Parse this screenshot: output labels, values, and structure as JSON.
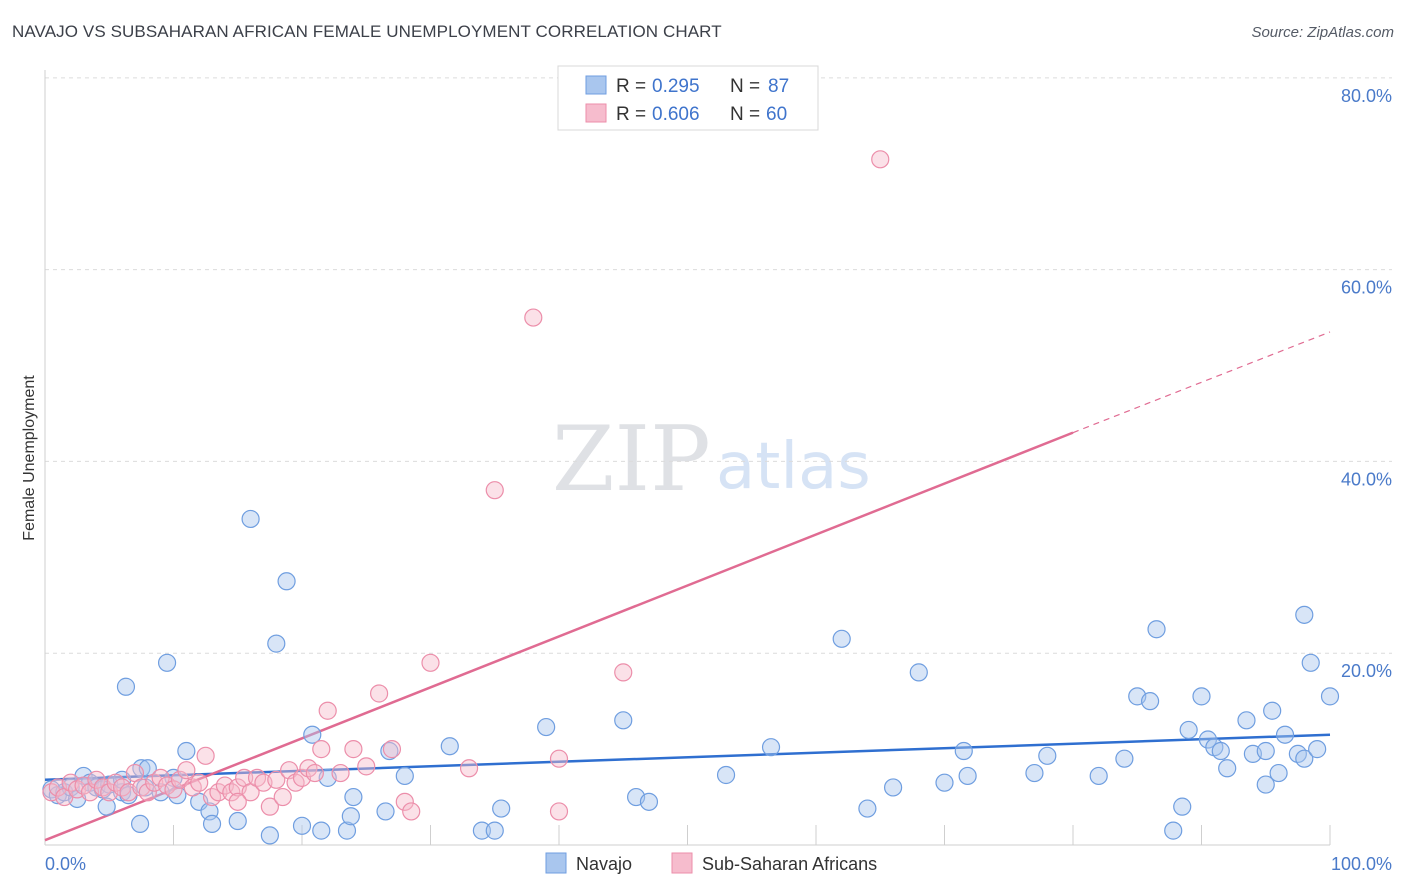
{
  "title": "NAVAJO VS SUBSAHARAN AFRICAN FEMALE UNEMPLOYMENT CORRELATION CHART",
  "source": "Source: ZipAtlas.com",
  "watermark": {
    "zip": "ZIP",
    "atlas": "atlas"
  },
  "colors": {
    "navajo_fill": "#a9c6ee",
    "navajo_stroke": "#6f9ee0",
    "navajo_line": "#2f6fd0",
    "sub_fill": "#f6bccd",
    "sub_stroke": "#ec8eaa",
    "sub_line": "#e06b92",
    "tick_text": "#4a7ac9",
    "grid": "#dcdcdc"
  },
  "legend": {
    "rows": [
      {
        "r_label": "R =",
        "r_value": "0.295",
        "n_label": "N =",
        "n_value": "87"
      },
      {
        "r_label": "R =",
        "r_value": "0.606",
        "n_label": "N =",
        "n_value": "60"
      }
    ]
  },
  "bottom_legend": {
    "navajo": "Navajo",
    "sub": "Sub-Saharan Africans"
  },
  "chart_data": {
    "type": "scatter",
    "title": "NAVAJO VS SUBSAHARAN AFRICAN FEMALE UNEMPLOYMENT CORRELATION CHART",
    "xlabel": "",
    "ylabel": "Female Unemployment",
    "x_ticks": [
      "0.0%",
      "100.0%"
    ],
    "y_ticks": [
      "20.0%",
      "40.0%",
      "60.0%",
      "80.0%"
    ],
    "xlim": [
      0,
      100
    ],
    "ylim": [
      0,
      82
    ],
    "grid": true,
    "legend_position": "top-center",
    "series": [
      {
        "name": "Navajo",
        "r": 0.295,
        "n": 87,
        "trend": {
          "x": [
            0,
            100
          ],
          "y": [
            6.8,
            11.5
          ],
          "style": "solid"
        },
        "points": [
          [
            0.5,
            5.8
          ],
          [
            1,
            5.2
          ],
          [
            1.5,
            5.5
          ],
          [
            2,
            6.0
          ],
          [
            2.5,
            4.8
          ],
          [
            3,
            7.2
          ],
          [
            3.5,
            6.5
          ],
          [
            4,
            6.0
          ],
          [
            4.5,
            5.8
          ],
          [
            5,
            6.3
          ],
          [
            4.8,
            4.0
          ],
          [
            6,
            5.5
          ],
          [
            6,
            6.8
          ],
          [
            6.5,
            5.2
          ],
          [
            6.3,
            16.5
          ],
          [
            7.5,
            8.0
          ],
          [
            7.4,
            2.2
          ],
          [
            7.8,
            6.0
          ],
          [
            8,
            8.0
          ],
          [
            9,
            5.5
          ],
          [
            9.5,
            19.0
          ],
          [
            10,
            7.0
          ],
          [
            10.3,
            5.2
          ],
          [
            11,
            9.8
          ],
          [
            12,
            4.5
          ],
          [
            12.8,
            3.5
          ],
          [
            13,
            2.2
          ],
          [
            15,
            2.5
          ],
          [
            16,
            34.0
          ],
          [
            17.5,
            1.0
          ],
          [
            18,
            21.0
          ],
          [
            18.8,
            27.5
          ],
          [
            20,
            2.0
          ],
          [
            20.8,
            11.5
          ],
          [
            21.5,
            1.5
          ],
          [
            22,
            7.0
          ],
          [
            23.5,
            1.5
          ],
          [
            23.8,
            3.0
          ],
          [
            24,
            5.0
          ],
          [
            26.5,
            3.5
          ],
          [
            26.8,
            9.8
          ],
          [
            28,
            7.2
          ],
          [
            31.5,
            10.3
          ],
          [
            34,
            1.5
          ],
          [
            35,
            1.5
          ],
          [
            35.5,
            3.8
          ],
          [
            39,
            12.3
          ],
          [
            45,
            13.0
          ],
          [
            46,
            5.0
          ],
          [
            47,
            4.5
          ],
          [
            53,
            7.3
          ],
          [
            56.5,
            10.2
          ],
          [
            62,
            21.5
          ],
          [
            64,
            3.8
          ],
          [
            66,
            6.0
          ],
          [
            68,
            18.0
          ],
          [
            70,
            6.5
          ],
          [
            71.5,
            9.8
          ],
          [
            71.8,
            7.2
          ],
          [
            77,
            7.5
          ],
          [
            78,
            9.3
          ],
          [
            82,
            7.2
          ],
          [
            84,
            9.0
          ],
          [
            85,
            15.5
          ],
          [
            86,
            15.0
          ],
          [
            86.5,
            22.5
          ],
          [
            87.8,
            1.5
          ],
          [
            88.5,
            4.0
          ],
          [
            89,
            12.0
          ],
          [
            90,
            15.5
          ],
          [
            90.5,
            11.0
          ],
          [
            91,
            10.2
          ],
          [
            91.5,
            9.8
          ],
          [
            92,
            8.0
          ],
          [
            93.5,
            13.0
          ],
          [
            94,
            9.5
          ],
          [
            95,
            6.3
          ],
          [
            95,
            9.8
          ],
          [
            95.5,
            14.0
          ],
          [
            96,
            7.5
          ],
          [
            96.5,
            11.5
          ],
          [
            97.5,
            9.5
          ],
          [
            98,
            9.0
          ],
          [
            98,
            24.0
          ],
          [
            98.5,
            19.0
          ],
          [
            99,
            10.0
          ],
          [
            100,
            15.5
          ]
        ]
      },
      {
        "name": "Sub-Saharan Africans",
        "r": 0.606,
        "n": 60,
        "trend": {
          "x": [
            0,
            80
          ],
          "y": [
            0.5,
            43.0
          ],
          "style": "solid",
          "dashed_extension": {
            "x": [
              80,
              100
            ],
            "y": [
              43.0,
              53.5
            ]
          }
        },
        "points": [
          [
            0.5,
            5.5
          ],
          [
            1,
            6.0
          ],
          [
            1.5,
            5.0
          ],
          [
            2,
            6.5
          ],
          [
            2.5,
            5.8
          ],
          [
            3,
            6.2
          ],
          [
            3.5,
            5.5
          ],
          [
            4,
            6.8
          ],
          [
            4.5,
            6.0
          ],
          [
            5,
            5.5
          ],
          [
            5.5,
            6.5
          ],
          [
            6,
            6.0
          ],
          [
            6.5,
            5.5
          ],
          [
            7,
            7.5
          ],
          [
            7.5,
            6.0
          ],
          [
            8,
            5.5
          ],
          [
            8.5,
            6.5
          ],
          [
            9,
            7.0
          ],
          [
            9.5,
            6.2
          ],
          [
            10,
            5.8
          ],
          [
            10.5,
            6.8
          ],
          [
            11,
            7.8
          ],
          [
            11.5,
            6.0
          ],
          [
            12,
            6.5
          ],
          [
            12.5,
            9.3
          ],
          [
            13,
            5.0
          ],
          [
            13.5,
            5.5
          ],
          [
            14,
            6.2
          ],
          [
            14.5,
            5.5
          ],
          [
            15,
            6.0
          ],
          [
            15.5,
            7.0
          ],
          [
            16,
            5.5
          ],
          [
            16.5,
            7.0
          ],
          [
            17,
            6.5
          ],
          [
            17.5,
            4.0
          ],
          [
            18,
            6.8
          ],
          [
            18.5,
            5.0
          ],
          [
            19,
            7.8
          ],
          [
            19.5,
            6.5
          ],
          [
            20,
            7.0
          ],
          [
            20.5,
            8.0
          ],
          [
            21,
            7.5
          ],
          [
            21.5,
            10.0
          ],
          [
            22,
            14.0
          ],
          [
            23,
            7.5
          ],
          [
            24,
            10.0
          ],
          [
            25,
            8.2
          ],
          [
            26,
            15.8
          ],
          [
            27,
            10.0
          ],
          [
            28,
            4.5
          ],
          [
            28.5,
            3.5
          ],
          [
            30,
            19.0
          ],
          [
            33,
            8.0
          ],
          [
            35,
            37.0
          ],
          [
            38,
            55.0
          ],
          [
            40,
            3.5
          ],
          [
            40,
            9.0
          ],
          [
            45,
            18.0
          ],
          [
            65,
            71.5
          ],
          [
            15,
            4.5
          ]
        ]
      }
    ]
  }
}
